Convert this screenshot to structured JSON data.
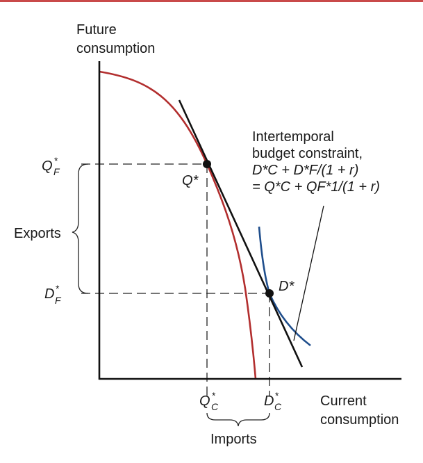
{
  "colors": {
    "ppf": "#b22e2e",
    "indifference": "#1f4e8c",
    "budget_line": "#111111",
    "axes": "#111111",
    "guides": "#222222",
    "top_rule": "#c94a4a"
  },
  "axes": {
    "y_label_line1": "Future",
    "y_label_line2": "consumption",
    "x_label_line1": "Current",
    "x_label_line2": "consumption"
  },
  "points": {
    "q_star": "Q*",
    "d_star": "D*"
  },
  "ticks": {
    "qf_main": "Q",
    "qf_sub": "F",
    "df_main": "D",
    "df_sub": "F",
    "qc_main": "Q",
    "qc_sub": "C",
    "dc_main": "D",
    "dc_sub": "C",
    "star": "*"
  },
  "brackets": {
    "exports": "Exports",
    "imports": "Imports"
  },
  "annotation": {
    "line1": "Intertemporal",
    "line2": "budget constraint,",
    "line3": "D*C + D*F/(1 + r)",
    "line4": "= Q*C + QF*1/(1 + r)"
  }
}
